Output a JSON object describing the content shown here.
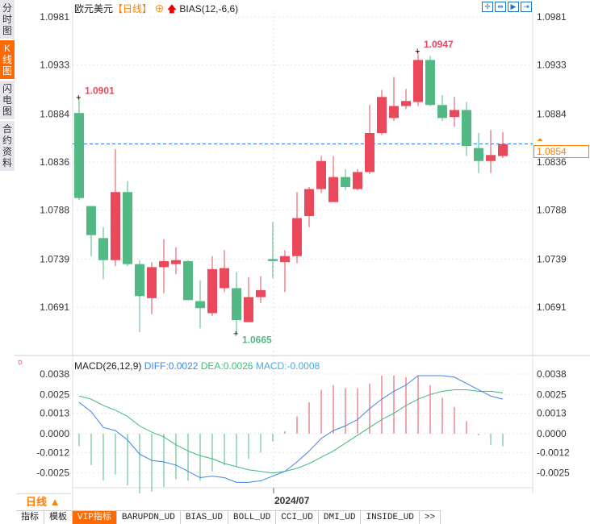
{
  "sidebar": {
    "tabs": [
      {
        "label": "分时图"
      },
      {
        "label": "K线图",
        "active": true
      },
      {
        "label": "闪电图"
      },
      {
        "label": "合约资料"
      }
    ]
  },
  "header": {
    "symbol": "欧元美元",
    "period": "【日线】",
    "indicator": "BIAS(12,-6,6)"
  },
  "toolbar": {
    "icons": [
      "crosshair-icon",
      "fit-icon",
      "play-icon",
      "goto-end-icon"
    ]
  },
  "colors": {
    "up": "#e9495a",
    "down": "#52b884",
    "diff": "#3c86e6",
    "dea": "#3dbb77",
    "current": "#ff7f00"
  },
  "price_axis": {
    "ticks": [
      "1.0981",
      "1.0933",
      "1.0884",
      "1.0836",
      "1.0788",
      "1.0739",
      "1.0691"
    ]
  },
  "current_price": "1.0854",
  "annotations": {
    "high": "1.0947",
    "first_high": "1.0901",
    "low": "1.0665"
  },
  "macd": {
    "title": "MACD(26,12,9)",
    "diff": "DIFF:0.0022",
    "dea": "DEA:0.0026",
    "macd": "MACD:-0.0008",
    "ticks": [
      "0.0038",
      "0.0025",
      "0.0013",
      "0.0000",
      "-0.0012",
      "-0.0025"
    ]
  },
  "x_axis": {
    "label": "2024/07"
  },
  "period_button": "日线 ▲",
  "bottom_tabs": [
    "指标",
    "模板",
    "VIP指标",
    "BARUPDN_UD",
    "BIAS_UD",
    "BOLL_UD",
    "CCI_UD",
    "DMI_UD",
    "INSIDE_UD",
    ">>"
  ],
  "chart_data": {
    "type": "candlestick",
    "ohlc": [
      [
        1.0885,
        1.0901,
        1.0798,
        1.08
      ],
      [
        1.0792,
        1.0792,
        1.0742,
        1.0763
      ],
      [
        1.076,
        1.0771,
        1.0719,
        1.0738
      ],
      [
        1.0738,
        1.0849,
        1.0732,
        1.0806
      ],
      [
        1.0806,
        1.0817,
        1.0732,
        1.0734
      ],
      [
        1.0734,
        1.0738,
        1.0666,
        1.0702
      ],
      [
        1.07,
        1.0736,
        1.0684,
        1.0731
      ],
      [
        1.0731,
        1.0759,
        1.0705,
        1.0737
      ],
      [
        1.0734,
        1.0751,
        1.0724,
        1.0738
      ],
      [
        1.0737,
        1.0738,
        1.0698,
        1.0698
      ],
      [
        1.0697,
        1.0718,
        1.067,
        1.069
      ],
      [
        1.0685,
        1.0742,
        1.0682,
        1.0729
      ],
      [
        1.071,
        1.0748,
        1.0706,
        1.073
      ],
      [
        1.071,
        1.0726,
        1.0665,
        1.0678
      ],
      [
        1.0676,
        1.0721,
        1.0676,
        1.0701
      ],
      [
        1.0701,
        1.0722,
        1.0695,
        1.0708
      ],
      [
        1.0739,
        1.0776,
        1.072,
        1.0737
      ],
      [
        1.0736,
        1.0748,
        1.0706,
        1.0742
      ],
      [
        1.0742,
        1.0806,
        1.0735,
        1.078
      ],
      [
        1.0782,
        1.0811,
        1.0771,
        1.0809
      ],
      [
        1.0809,
        1.0842,
        1.0805,
        1.0837
      ],
      [
        1.0796,
        1.0842,
        1.0796,
        1.0821
      ],
      [
        1.0821,
        1.0829,
        1.0808,
        1.0811
      ],
      [
        1.0809,
        1.0829,
        1.0808,
        1.0826
      ],
      [
        1.0826,
        1.0893,
        1.0824,
        1.0865
      ],
      [
        1.0865,
        1.0908,
        1.0863,
        1.0901
      ],
      [
        1.088,
        1.0921,
        1.0877,
        1.0892
      ],
      [
        1.0892,
        1.0909,
        1.0889,
        1.0897
      ],
      [
        1.0896,
        1.0947,
        1.0892,
        1.0938
      ],
      [
        1.0938,
        1.0942,
        1.0892,
        1.0893
      ],
      [
        1.0893,
        1.0903,
        1.0877,
        1.088
      ],
      [
        1.0881,
        1.0901,
        1.0871,
        1.0888
      ],
      [
        1.0888,
        1.0896,
        1.0842,
        1.0852
      ],
      [
        1.085,
        1.0865,
        1.0825,
        1.0837
      ],
      [
        1.0837,
        1.0868,
        1.0825,
        1.0843
      ],
      [
        1.0842,
        1.0866,
        1.084,
        1.0854
      ]
    ],
    "ylim": [
      1.0645,
      1.0995
    ],
    "macd_hist": [
      -0.0008,
      -0.002,
      -0.003,
      -0.0026,
      -0.0033,
      -0.0038,
      -0.0037,
      -0.0034,
      -0.0029,
      -0.003,
      -0.003,
      -0.0024,
      -0.002,
      -0.0021,
      -0.0016,
      -0.0012,
      -0.0005,
      0.00015,
      0.0011,
      0.002,
      0.0028,
      0.0031,
      0.0029,
      0.0029,
      0.0032,
      0.0037,
      0.0037,
      0.0036,
      0.0037,
      0.0031,
      0.0023,
      0.0017,
      0.0008,
      -0.0001,
      -0.0007,
      -0.0008
    ],
    "diff": [
      0.002,
      0.0014,
      0.0004,
      0.0002,
      -0.0004,
      -0.0013,
      -0.0017,
      -0.0018,
      -0.002,
      -0.0024,
      -0.0028,
      -0.0027,
      -0.0028,
      -0.0031,
      -0.0031,
      -0.003,
      -0.0027,
      -0.0024,
      -0.0018,
      -0.0011,
      -0.0003,
      0.0002,
      0.0005,
      0.0009,
      0.0016,
      0.0022,
      0.0027,
      0.0031,
      0.0037,
      0.0037,
      0.0037,
      0.0036,
      0.0032,
      0.0028,
      0.0024,
      0.0022
    ],
    "dea": [
      0.0024,
      0.0022,
      0.0018,
      0.0015,
      0.0011,
      0.0005,
      0.0001,
      -0.0002,
      -0.0007,
      -0.0011,
      -0.0014,
      -0.0016,
      -0.0019,
      -0.0021,
      -0.0023,
      -0.0024,
      -0.0025,
      -0.0024,
      -0.0022,
      -0.0019,
      -0.0015,
      -0.0011,
      -0.0006,
      -0.0001,
      0.0004,
      0.0009,
      0.0013,
      0.0018,
      0.0022,
      0.0025,
      0.0027,
      0.0028,
      0.0028,
      0.0027,
      0.0027,
      0.0026
    ]
  }
}
